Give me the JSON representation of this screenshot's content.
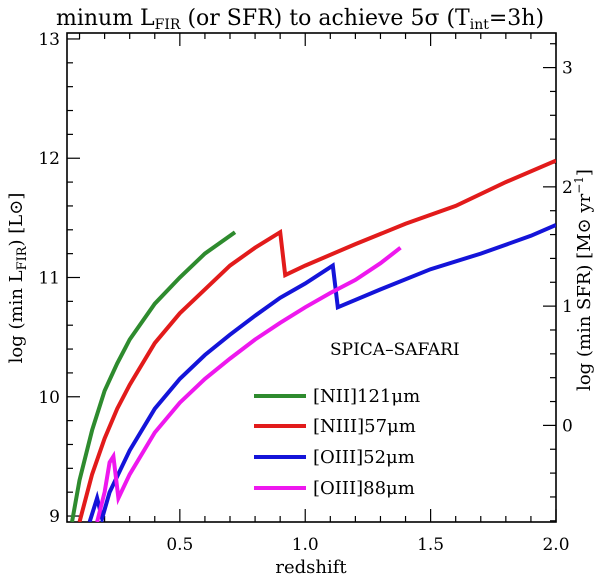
{
  "chart_data": {
    "type": "line",
    "title": {
      "prefix": "minum L",
      "prefix_sub": "FIR",
      "middle": " (or SFR) to achieve 5σ (T",
      "tint_sub": "int",
      "suffix": "=3h)"
    },
    "xlabel": "redshift",
    "ylabel_left": {
      "prefix": "log (min L",
      "sub": "FIR",
      "suffix": ") [L⊙]"
    },
    "ylabel_right": {
      "prefix": "log (min SFR) [M⊙ yr",
      "sup": "−1",
      "suffix": "]"
    },
    "xlim": [
      0.05,
      2.0
    ],
    "ylim": [
      8.95,
      13.05
    ],
    "x_ticks": [
      0.5,
      1.0,
      1.5,
      2.0
    ],
    "x_tick_labels": [
      "0.5",
      "1.0",
      "1.5",
      "2.0"
    ],
    "y_ticks": [
      9,
      10,
      11,
      12,
      13
    ],
    "y_tick_labels": [
      "9",
      "10",
      "11",
      "12",
      "13"
    ],
    "right_ticks": [
      0,
      1,
      2,
      3
    ],
    "right_tick_labels": [
      "0",
      "1",
      "2",
      "3"
    ],
    "right_axis_offset": -9.76,
    "annotation": "SPICA–SAFARI",
    "legend_position": "lower-center",
    "series": [
      {
        "name": "[NII]121μm",
        "legend_label": "[NII]121μm",
        "color": "#2e8b2e",
        "points": [
          [
            0.07,
            8.95
          ],
          [
            0.1,
            9.3
          ],
          [
            0.15,
            9.72
          ],
          [
            0.2,
            10.05
          ],
          [
            0.25,
            10.28
          ],
          [
            0.3,
            10.48
          ],
          [
            0.4,
            10.78
          ],
          [
            0.5,
            11.0
          ],
          [
            0.6,
            11.2
          ],
          [
            0.72,
            11.38
          ]
        ]
      },
      {
        "name": "[NIII]57μm",
        "legend_label": "[NIII]57μm",
        "color": "#e21b1b",
        "points": [
          [
            0.1,
            8.95
          ],
          [
            0.15,
            9.35
          ],
          [
            0.2,
            9.65
          ],
          [
            0.25,
            9.9
          ],
          [
            0.3,
            10.1
          ],
          [
            0.4,
            10.45
          ],
          [
            0.5,
            10.7
          ],
          [
            0.6,
            10.9
          ],
          [
            0.7,
            11.1
          ],
          [
            0.8,
            11.25
          ],
          [
            0.9,
            11.38
          ],
          [
            0.92,
            11.02
          ],
          [
            1.0,
            11.1
          ],
          [
            1.2,
            11.28
          ],
          [
            1.4,
            11.45
          ],
          [
            1.6,
            11.6
          ],
          [
            1.8,
            11.8
          ],
          [
            2.0,
            11.98
          ]
        ]
      },
      {
        "name": "[OIII]52μm",
        "legend_label": "[OIII]52μm",
        "color": "#1414d9",
        "points": [
          [
            0.14,
            8.95
          ],
          [
            0.17,
            9.15
          ],
          [
            0.19,
            8.98
          ],
          [
            0.22,
            9.2
          ],
          [
            0.3,
            9.55
          ],
          [
            0.4,
            9.9
          ],
          [
            0.5,
            10.15
          ],
          [
            0.6,
            10.35
          ],
          [
            0.7,
            10.52
          ],
          [
            0.8,
            10.68
          ],
          [
            0.9,
            10.83
          ],
          [
            1.0,
            10.95
          ],
          [
            1.11,
            11.1
          ],
          [
            1.13,
            10.75
          ],
          [
            1.3,
            10.9
          ],
          [
            1.5,
            11.07
          ],
          [
            1.7,
            11.2
          ],
          [
            1.9,
            11.35
          ],
          [
            2.0,
            11.44
          ]
        ]
      },
      {
        "name": "[OIII]88μm",
        "legend_label": "[OIII]88μm",
        "color": "#ee18ee",
        "points": [
          [
            0.17,
            8.95
          ],
          [
            0.2,
            9.2
          ],
          [
            0.22,
            9.45
          ],
          [
            0.235,
            9.5
          ],
          [
            0.255,
            9.15
          ],
          [
            0.3,
            9.35
          ],
          [
            0.4,
            9.7
          ],
          [
            0.5,
            9.95
          ],
          [
            0.6,
            10.15
          ],
          [
            0.7,
            10.32
          ],
          [
            0.8,
            10.48
          ],
          [
            0.9,
            10.62
          ],
          [
            1.0,
            10.75
          ],
          [
            1.1,
            10.87
          ],
          [
            1.2,
            10.98
          ],
          [
            1.3,
            11.12
          ],
          [
            1.38,
            11.25
          ]
        ]
      }
    ]
  }
}
